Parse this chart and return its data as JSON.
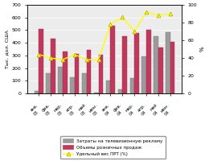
{
  "months": [
    "янв.\n03",
    "фев.\n03",
    "мар.\n03",
    "апр.\n03",
    "май\n03",
    "июн.\n03",
    "янв.\n04",
    "фев.\n04",
    "мар.\n04",
    "апр.\n04",
    "май\n04",
    "июн.\n04"
  ],
  "months_rotated": [
    "янв.",
    "фев.",
    "мар.",
    "апр.",
    "май",
    "июн.",
    "янв.",
    "фев.",
    "мар.",
    "апр.",
    "май",
    "июн."
  ],
  "years": [
    "03",
    "03",
    "03",
    "03",
    "03",
    "03",
    "04",
    "04",
    "04",
    "04",
    "04",
    "04"
  ],
  "tv_costs": [
    20,
    160,
    210,
    125,
    160,
    5,
    105,
    30,
    120,
    290,
    450,
    485
  ],
  "retail_sales": [
    510,
    435,
    330,
    310,
    345,
    305,
    535,
    455,
    480,
    505,
    365,
    405
  ],
  "prt_pct": [
    44,
    40,
    38,
    44,
    38,
    38,
    78,
    86,
    70,
    92,
    88,
    90
  ],
  "bar_color_tv": "#9b9b9b",
  "bar_color_retail": "#c0395c",
  "line_color": "#ffff00",
  "line_marker": "^",
  "marker_edge_color": "#b8a000",
  "ylim_left": [
    0,
    700
  ],
  "ylim_right": [
    0,
    100
  ],
  "yticks_left": [
    0,
    100,
    200,
    300,
    400,
    500,
    600,
    700
  ],
  "yticks_right": [
    0,
    20,
    40,
    60,
    80,
    100
  ],
  "ylabel_left": "Тыс. дол. США",
  "ylabel_right": "%",
  "legend_tv": "Затраты на телевизионную рекламу",
  "legend_retail": "Объемы розничных продаж",
  "legend_prt": "Удельный вес ПРТ (%)",
  "bg_color": "#ececec",
  "grid_color": "#ffffff"
}
